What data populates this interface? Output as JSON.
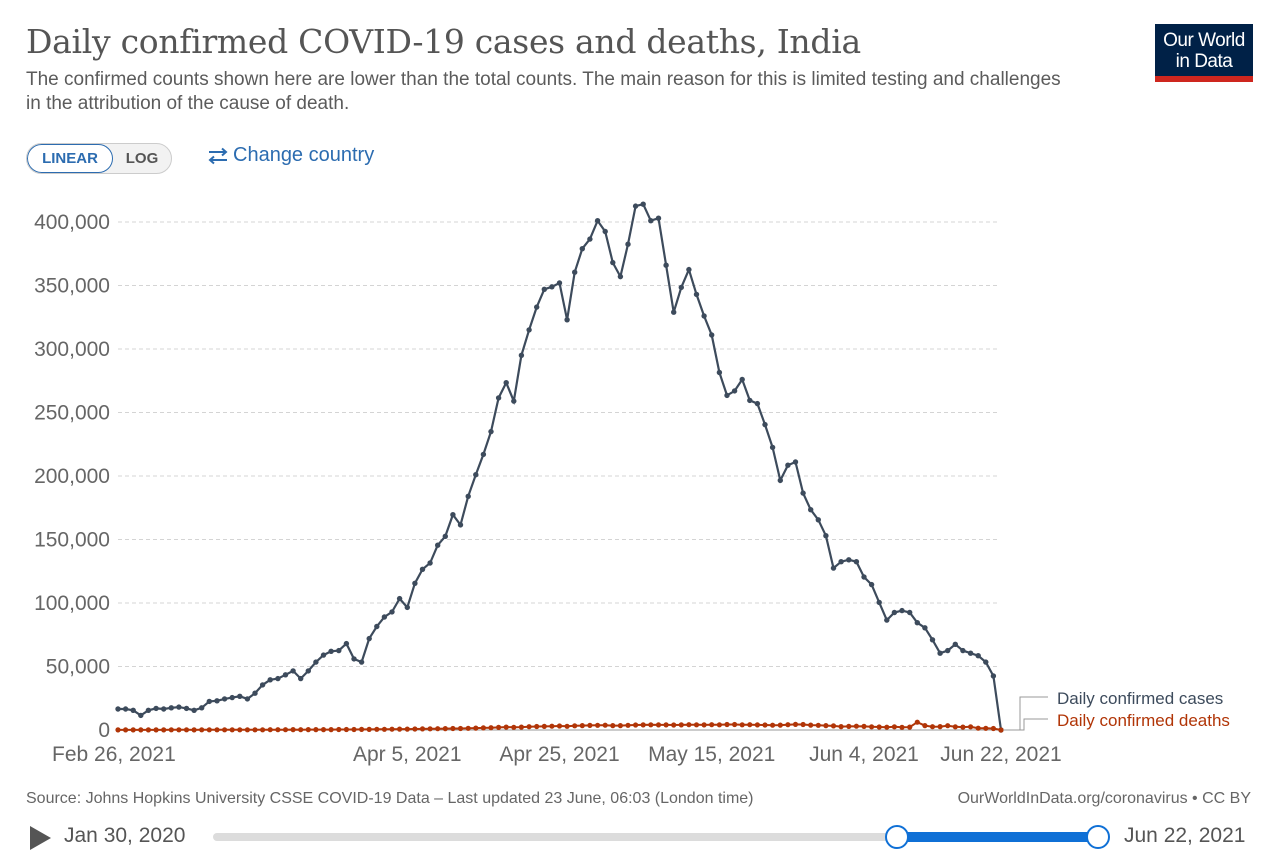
{
  "header": {
    "title": "Daily confirmed COVID-19 cases and deaths, India",
    "subtitle": "The confirmed counts shown here are lower than the total counts. The main reason for this is limited testing and challenges in the attribution of the cause of death.",
    "logo_line1": "Our World",
    "logo_line2": "in Data"
  },
  "controls": {
    "linear_label": "LINEAR",
    "log_label": "LOG",
    "change_country_label": "Change country",
    "change_country_icon": "swap-arrows-icon"
  },
  "footer": {
    "source": "Source: Johns Hopkins University CSSE COVID-19 Data – Last updated 23 June, 06:03 (London time)",
    "site": "OurWorldInData.org/coronavirus • CC BY"
  },
  "timeline": {
    "start_label": "Jan 30, 2020",
    "end_label": "Jun 22, 2021",
    "play_icon": "play-icon",
    "selected_range_fraction": [
      0.77,
      1.0
    ]
  },
  "colors": {
    "cases": "#3d4b5c",
    "deaths": "#b13507",
    "accent": "#0f70d6",
    "link": "#2c6cb0"
  },
  "chart_data": {
    "type": "line",
    "x_start": "2021-02-26",
    "x_end": "2021-06-22",
    "x_ticks": [
      "Feb 26, 2021",
      "Apr 5, 2021",
      "Apr 25, 2021",
      "May 15, 2021",
      "Jun 4, 2021",
      "Jun 22, 2021"
    ],
    "y_ticks": [
      "0",
      "50,000",
      "100,000",
      "150,000",
      "200,000",
      "250,000",
      "300,000",
      "350,000",
      "400,000"
    ],
    "ylim": [
      0,
      420000
    ],
    "grid": "horizontal dashed",
    "legend_placement": "right end of lines",
    "scale": "linear",
    "series": [
      {
        "name": "Daily confirmed cases",
        "color": "#3d4b5c",
        "values": [
          16500,
          16500,
          15500,
          11500,
          15500,
          17000,
          16500,
          17500,
          18000,
          17000,
          15500,
          17500,
          22500,
          23000,
          24500,
          25500,
          26500,
          24500,
          29000,
          35500,
          39500,
          40500,
          43500,
          46500,
          40500,
          46500,
          53500,
          59000,
          62000,
          62500,
          68000,
          56000,
          53500,
          72000,
          81500,
          89000,
          93000,
          103500,
          96500,
          115500,
          126500,
          131500,
          145500,
          152500,
          169500,
          161500,
          184000,
          201000,
          217000,
          235000,
          261500,
          273500,
          259000,
          295000,
          315000,
          333000,
          347000,
          349000,
          352000,
          323000,
          360500,
          379000,
          386500,
          401000,
          392500,
          368000,
          357000,
          382500,
          412500,
          414000,
          401000,
          403000,
          366000,
          329000,
          348500,
          362500,
          343000,
          326000,
          311000,
          281500,
          263500,
          267000,
          276000,
          259500,
          257000,
          240500,
          222500,
          196500,
          208500,
          211000,
          186500,
          173500,
          165500,
          153000,
          127500,
          132500,
          134000,
          132500,
          120500,
          114500,
          100500,
          86500,
          92500,
          94000,
          92500,
          84500,
          80500,
          71000,
          60500,
          62500,
          67500,
          62500,
          60500,
          58500,
          53500,
          42500,
          0
        ]
      },
      {
        "name": "Daily confirmed deaths",
        "color": "#b13507",
        "values": [
          100,
          110,
          100,
          80,
          100,
          110,
          110,
          120,
          130,
          120,
          110,
          120,
          130,
          140,
          150,
          160,
          170,
          160,
          180,
          190,
          200,
          220,
          250,
          280,
          250,
          290,
          300,
          330,
          350,
          360,
          400,
          420,
          450,
          480,
          520,
          570,
          620,
          690,
          710,
          780,
          880,
          950,
          1040,
          1100,
          1200,
          1160,
          1340,
          1520,
          1630,
          1780,
          2020,
          2260,
          2150,
          2320,
          2630,
          2780,
          2850,
          2970,
          3150,
          2900,
          3300,
          3500,
          3600,
          3700,
          3800,
          3500,
          3460,
          3700,
          3900,
          4050,
          4100,
          4000,
          4000,
          3900,
          4050,
          4200,
          4100,
          4000,
          4200,
          4100,
          4300,
          4300,
          4100,
          4200,
          4000,
          3900,
          3800,
          3850,
          4200,
          4400,
          4300,
          3850,
          3700,
          3500,
          3200,
          2700,
          2800,
          3000,
          2800,
          2500,
          2400,
          2200,
          2500,
          2100,
          2300,
          6150,
          3500,
          2600,
          2700,
          3400,
          2500,
          2300,
          2500,
          1400,
          1300,
          1200,
          0
        ]
      }
    ]
  }
}
